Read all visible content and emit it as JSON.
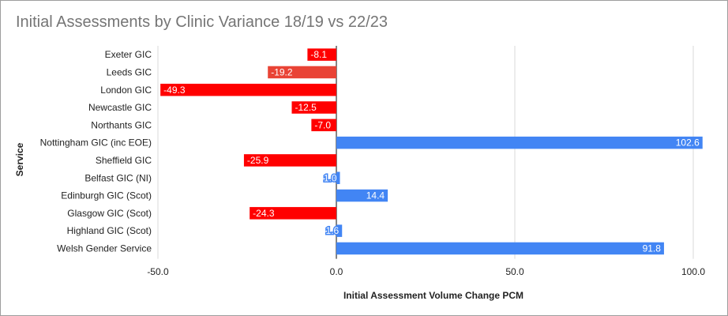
{
  "chart_data": {
    "type": "bar",
    "orientation": "horizontal",
    "title": "Initial Assessments by Clinic Variance 18/19 vs 22/23",
    "xlabel": "Initial Assessment Volume Change PCM",
    "ylabel": "Service",
    "xlim": [
      -50,
      100
    ],
    "xticks": [
      -50,
      0,
      50,
      100
    ],
    "xtick_labels": [
      "-50.0",
      "0.0",
      "50.0",
      "100.0"
    ],
    "grid": true,
    "legend": "none",
    "colors": {
      "positive": "#4285f4",
      "negative": "#ff0000",
      "negative_alt": "#e94335"
    },
    "categories": [
      "Exeter GIC",
      "Leeds GIC",
      "London GIC",
      "Newcastle GIC",
      "Northants GIC",
      "Nottingham GIC (inc EOE)",
      "Sheffield GIC",
      "Belfast GIC (NI)",
      "Edinburgh GIC (Scot)",
      "Glasgow GIC (Scot)",
      "Highland GIC (Scot)",
      "Welsh Gender Service"
    ],
    "values": [
      -8.1,
      -19.2,
      -49.3,
      -12.5,
      -7.0,
      102.6,
      -25.9,
      1.0,
      14.4,
      -24.3,
      1.6,
      91.8
    ],
    "value_labels": [
      "-8.1",
      "-19.2",
      "-49.3",
      "-12.5",
      "-7.0",
      "102.6",
      "-25.9",
      "1.0",
      "14.4",
      "-24.3",
      "1.6",
      "91.8"
    ]
  }
}
